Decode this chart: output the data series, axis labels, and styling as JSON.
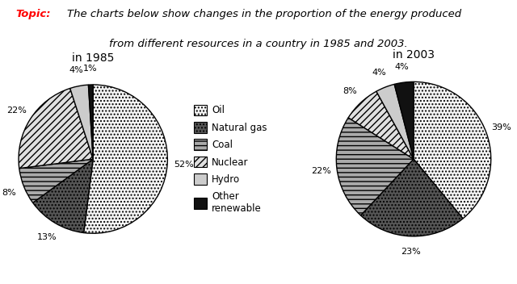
{
  "chart1_title": "in 1985",
  "chart2_title": "in 2003",
  "labels": [
    "Oil",
    "Natural gas",
    "Coal",
    "Nuclear",
    "Hydro",
    "Other\nrenewable"
  ],
  "values_1985": [
    52,
    13,
    8,
    22,
    4,
    1
  ],
  "values_2003": [
    39,
    23,
    22,
    8,
    4,
    4
  ],
  "pct_labels_1985": [
    "52%",
    "13%",
    "8%",
    "22%",
    "4%",
    "1%"
  ],
  "pct_labels_2003": [
    "39%",
    "23%",
    "22%",
    "8%",
    "4%",
    "4%"
  ],
  "face_colors": [
    "#f5f5f5",
    "#555555",
    "#aaaaaa",
    "#e0e0e0",
    "#cccccc",
    "#111111"
  ],
  "hatch_styles": [
    "....",
    "....",
    "---",
    "////",
    "",
    ""
  ],
  "background": "#ffffff",
  "title_line1": "The charts below show changes in the proportion of the energy produced",
  "title_line2": "from different resources in a country in 1985 and 2003.",
  "topic_label": "Topic:",
  "label_fontsize": 8,
  "title_fontsize": 10
}
